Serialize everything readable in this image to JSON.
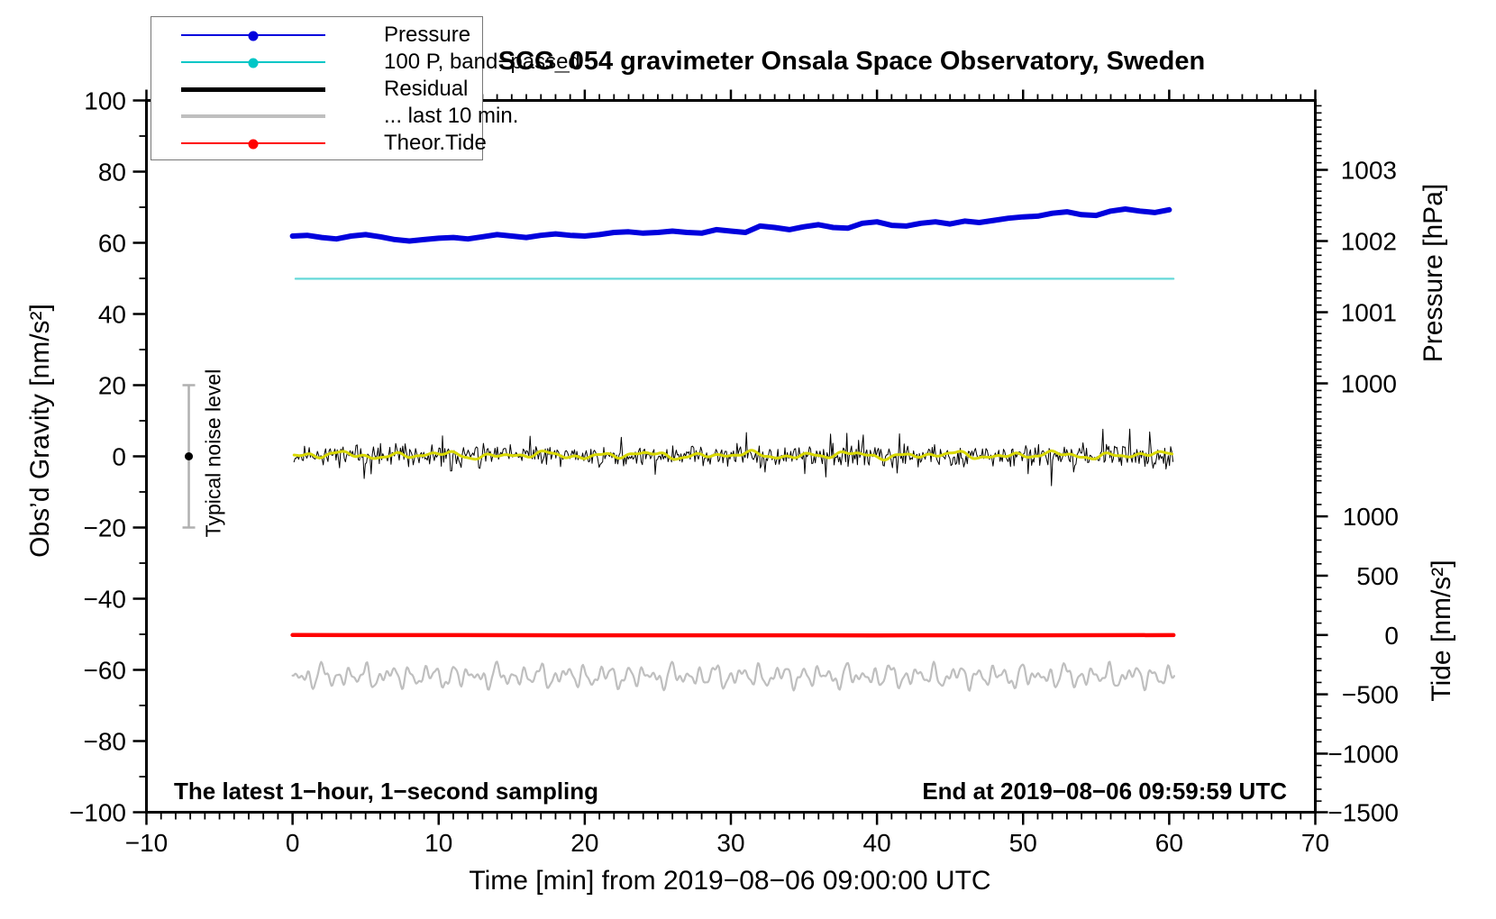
{
  "annotations": {
    "sampling": "The latest 1−hour, 1−second sampling",
    "end_time": "End at 2019−08−06 09:59:59 UTC",
    "noise_label": "Typical noise level"
  },
  "legend": {
    "items": [
      {
        "label": "Pressure",
        "color": "#0000dd",
        "line_width": 2,
        "marker": true
      },
      {
        "label": "100 P, band−passed",
        "color": "#00c6c6",
        "line_width": 2,
        "marker": true
      },
      {
        "label": "Residual",
        "color": "#000000",
        "line_width": 5,
        "marker": false
      },
      {
        "label": "... last 10 min.",
        "color": "#bfbfbf",
        "line_width": 4,
        "marker": false
      },
      {
        "label": "Theor.Tide",
        "color": "#ff0000",
        "line_width": 2,
        "marker": true
      }
    ]
  },
  "chart_data": {
    "type": "line",
    "title": "SCG_054 gravimeter Onsala Space Observatory, Sweden",
    "axes": {
      "x": {
        "label": "Time [min] from 2019−08−06 09:00:00 UTC",
        "min": -10,
        "max": 70,
        "major_ticks": [
          -10,
          0,
          10,
          20,
          30,
          40,
          50,
          60,
          70
        ],
        "minor_step": 1
      },
      "gravity": {
        "label": "Obs’d Gravity [nm/s²]",
        "min": -100,
        "max": 100,
        "major_step": 20,
        "minor_step": 10
      },
      "pressure": {
        "label": "Pressure [hPa]",
        "major_ticks": [
          1003,
          1002,
          1001,
          1000
        ],
        "minor_step": 0.1,
        "minor_range": [
          998.7,
          1003.9
        ],
        "anchor_hpa": 1002,
        "anchor_gravity": 60.5,
        "gravity_units_per_hpa": 20
      },
      "tide": {
        "label": "Tide [nm/s²]",
        "major_ticks": [
          1000,
          500,
          0,
          -500,
          -1000,
          -1500
        ],
        "minor_step": 100,
        "minor_range": [
          -1500,
          1600
        ],
        "anchor_value": 0,
        "anchor_gravity": -50.2,
        "units_per_gravity": 30
      }
    },
    "noise_marker": {
      "x": -7.1,
      "value": 0,
      "error": 20
    },
    "series": [
      {
        "name": "100 P, band-passed",
        "type": "line",
        "axis": "gravity",
        "color": "#66d9d9",
        "width": 2.2,
        "x": [
          0.2,
          60.3
        ],
        "y": [
          49.9,
          49.9
        ]
      },
      {
        "name": "Pressure",
        "type": "line",
        "axis": "pressure",
        "color": "#0000dd",
        "width": 6,
        "t_start": 0,
        "t_step": 1,
        "values": [
          1002.07,
          1002.08,
          1002.05,
          1002.03,
          1002.07,
          1002.09,
          1002.06,
          1002.02,
          1002.0,
          1002.02,
          1002.04,
          1002.05,
          1002.03,
          1002.06,
          1002.09,
          1002.07,
          1002.05,
          1002.08,
          1002.1,
          1002.08,
          1002.07,
          1002.09,
          1002.12,
          1002.13,
          1002.11,
          1002.12,
          1002.14,
          1002.12,
          1002.11,
          1002.16,
          1002.14,
          1002.12,
          1002.21,
          1002.19,
          1002.16,
          1002.2,
          1002.23,
          1002.19,
          1002.18,
          1002.25,
          1002.27,
          1002.22,
          1002.21,
          1002.25,
          1002.27,
          1002.24,
          1002.28,
          1002.26,
          1002.29,
          1002.32,
          1002.34,
          1002.35,
          1002.39,
          1002.41,
          1002.37,
          1002.36,
          1002.42,
          1002.45,
          1002.42,
          1002.4,
          1002.44
        ]
      },
      {
        "name": "Residual",
        "type": "noise",
        "axis": "gravity",
        "color": "#000000",
        "width": 1,
        "t_range": [
          0.1,
          60.3
        ],
        "step": 0.08,
        "center": 0.2,
        "amplitude": 2.6,
        "spike_prob": 0.05,
        "spike_extra": 4,
        "seed": 11
      },
      {
        "name": "Residual smoothed",
        "type": "smooth",
        "axis": "gravity",
        "color": "#d8d800",
        "width": 3,
        "t_range": [
          0.1,
          60.3
        ],
        "step": 0.1,
        "center": 0.3,
        "amplitude": 0.75,
        "freqs": [
          1.8,
          3.1,
          5.2,
          0.9
        ],
        "amps": [
          1,
          0.7,
          0.5,
          0.8
        ],
        "seed": 5
      },
      {
        "name": "... last 10 min.",
        "type": "smooth",
        "axis": "gravity",
        "color": "#bfbfbf",
        "width": 2.2,
        "t_range": [
          0,
          60.4
        ],
        "step": 0.07,
        "center": -61.8,
        "amplitude": 2.3,
        "freqs": [
          6.3,
          9.4,
          4.2,
          14.1,
          2.6
        ],
        "amps": [
          1,
          0.6,
          0.8,
          0.45,
          0.5
        ],
        "seed": 3
      },
      {
        "name": "Theor.Tide",
        "type": "line",
        "axis": "tide",
        "color": "#ff0000",
        "width": 4.5,
        "x": [
          0,
          10,
          20,
          30,
          40,
          50,
          60.3
        ],
        "y": [
          0,
          -1,
          -2,
          -2,
          -3,
          -2,
          -1
        ]
      }
    ]
  }
}
